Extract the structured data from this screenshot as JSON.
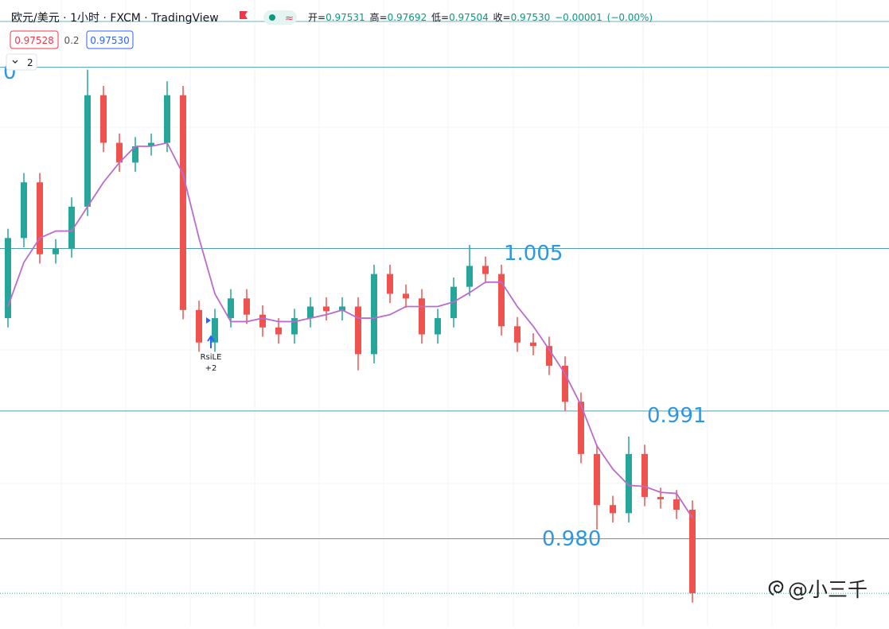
{
  "header": {
    "symbol": "欧元/美元 · 1小时 · FXCM · TradingView",
    "status_icon": "≈",
    "open_label": "开=",
    "open": "0.97531",
    "high_label": "高=",
    "high": "0.97692",
    "low_label": "低=",
    "low": "0.97504",
    "close_label": "收=",
    "close": "0.97530",
    "change": "−0.00001",
    "change_pct": "(−0.00%)",
    "sell_price": "0.97528",
    "spread": "0.2",
    "buy_price": "0.97530",
    "indicator_count": "2"
  },
  "chart_data": {
    "type": "candlestick",
    "ylim": [
      0.9725,
      1.0264
    ],
    "up_color": "#26a69a",
    "down_color": "#ef5350",
    "open": [
      0.999,
      1.0059,
      1.0107,
      1.0045,
      1.005,
      1.0086,
      1.0182,
      1.0141,
      1.0124,
      1.0138,
      1.0141,
      1.0182,
      0.9997,
      0.9969,
      0.999,
      1.0007,
      0.9993,
      0.9982,
      0.9976,
      0.999,
      1.0,
      0.9996,
      1.0,
      0.9959,
      1.0028,
      1.0011,
      1.0007,
      0.9976,
      0.999,
      1.0017,
      1.0035,
      1.0028,
      0.9983,
      0.9969,
      0.9966,
      0.9949,
      0.9918,
      0.9873,
      0.9829,
      0.9822,
      0.9873,
      0.9836,
      0.9834,
      0.9825
    ],
    "high": [
      1.0067,
      1.0115,
      1.0115,
      1.0058,
      1.0094,
      1.0204,
      1.019,
      1.0149,
      1.0146,
      1.0149,
      1.0194,
      1.019,
      1.0005,
      0.9998,
      1.0015,
      1.0015,
      1.0001,
      0.999,
      0.9998,
      1.0008,
      1.0008,
      1.0008,
      1.0008,
      1.0036,
      1.0036,
      1.0019,
      1.0015,
      0.9998,
      1.0025,
      1.0053,
      1.0043,
      1.0036,
      0.9991,
      0.9977,
      0.9974,
      0.9957,
      0.9926,
      0.9881,
      0.9837,
      0.9888,
      0.9881,
      0.9844,
      0.9842,
      0.9833
    ],
    "low": [
      0.9982,
      1.0051,
      1.0037,
      1.0037,
      1.0042,
      1.0078,
      1.0133,
      1.0116,
      1.0116,
      1.013,
      1.0133,
      0.9989,
      0.9961,
      0.9961,
      0.9982,
      0.9985,
      0.9974,
      0.9968,
      0.9968,
      0.9982,
      0.9988,
      0.9988,
      0.9945,
      0.9951,
      1.0003,
      0.9999,
      0.9968,
      0.9968,
      0.9982,
      1.0009,
      1.002,
      0.9975,
      0.9961,
      0.9958,
      0.9941,
      0.991,
      0.9865,
      0.9808,
      0.9814,
      0.9814,
      0.9828,
      0.9826,
      0.9817,
      0.9745
    ],
    "close": [
      1.0059,
      1.0107,
      1.0045,
      1.005,
      1.0086,
      1.0182,
      1.0141,
      1.0124,
      1.0138,
      1.0141,
      1.0182,
      0.9997,
      0.9969,
      0.999,
      1.0007,
      0.9993,
      0.9982,
      0.9976,
      0.999,
      1.0,
      0.9996,
      1.0,
      0.9959,
      1.0028,
      1.0011,
      1.0007,
      0.9976,
      0.999,
      1.0017,
      1.0035,
      1.0028,
      0.9983,
      0.9969,
      0.9966,
      0.9949,
      0.9918,
      0.9873,
      0.9829,
      0.9822,
      0.9873,
      0.9836,
      0.9834,
      0.9825,
      0.9753
    ],
    "ma": {
      "color": "#bb6bcc",
      "values": [
        1.0,
        1.0038,
        1.0059,
        1.0065,
        1.0065,
        1.0086,
        1.0107,
        1.0124,
        1.0138,
        1.0138,
        1.0141,
        1.0114,
        1.0059,
        1.0011,
        0.9987,
        0.9987,
        0.999,
        0.9987,
        0.9987,
        0.999,
        0.9993,
        0.9997,
        0.999,
        0.999,
        0.9993,
        1.0,
        1.0,
        1.0,
        1.0004,
        1.0012,
        1.0021,
        1.0021,
        1.0,
        0.9983,
        0.9963,
        0.9942,
        0.9915,
        0.988,
        0.986,
        0.9846,
        0.9845,
        0.984,
        0.9839,
        0.9818
      ]
    },
    "levels": [
      {
        "value": 1.0206,
        "label": "0"
      },
      1.005,
      0.991,
      {
        "value": 0.98,
        "label": "0.980"
      }
    ],
    "level_color": "#4f9fb0",
    "level_label_color": "#2f96e0",
    "annotation": {
      "text": "RsiLE",
      "sub": "+2"
    },
    "watermark": "@小三千"
  }
}
